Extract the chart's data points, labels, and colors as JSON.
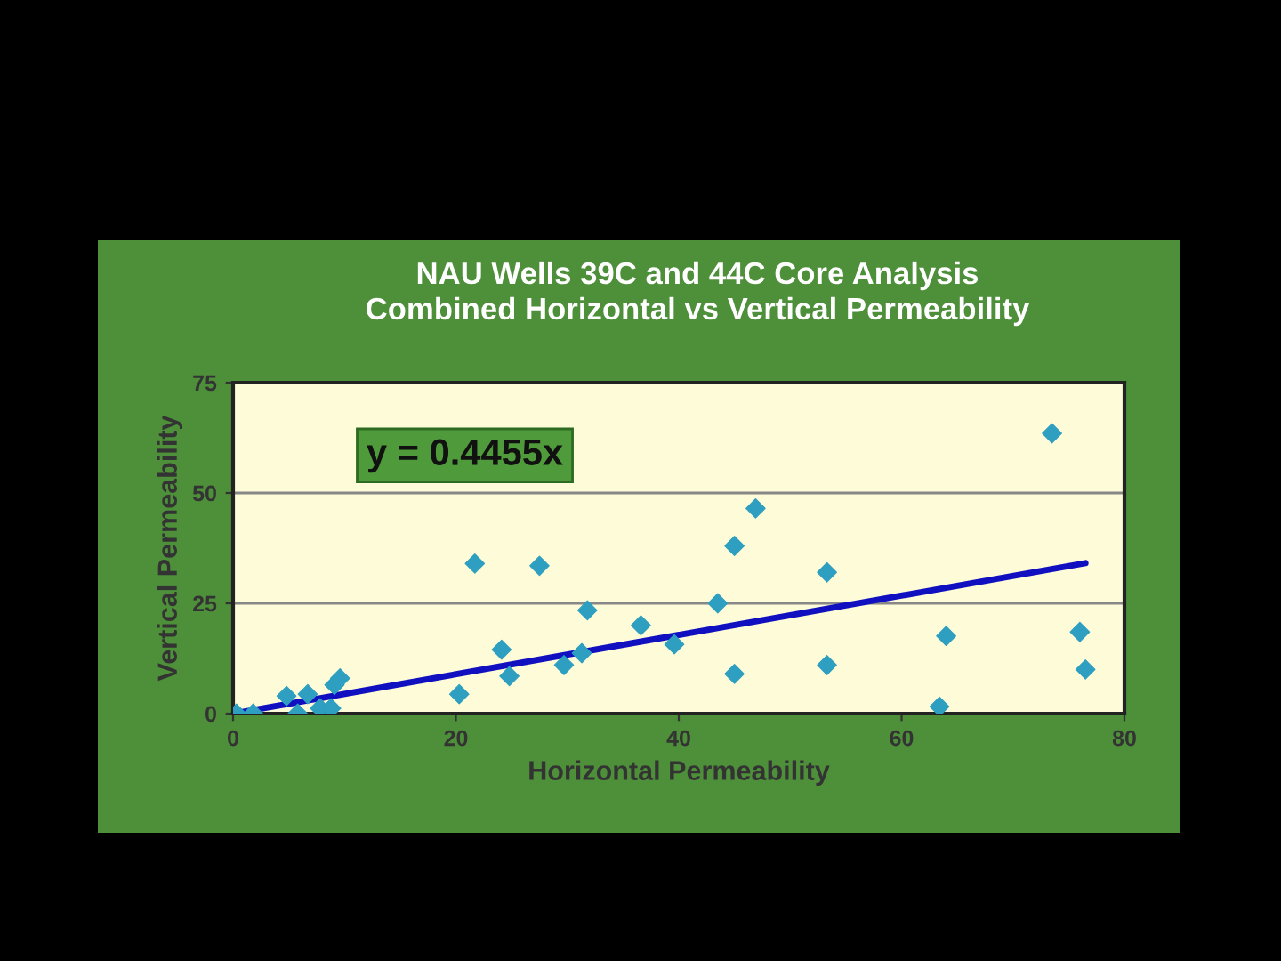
{
  "chart_data": {
    "type": "scatter",
    "title": "NAU Wells 39C and 44C Core Analysis\nCombined Horizontal vs Vertical Permeability",
    "xlabel": "Horizontal Permeability",
    "ylabel": "Vertical Permeability",
    "xlim": [
      0,
      80
    ],
    "xticks": [
      0,
      20,
      40,
      60,
      80
    ],
    "ylim": [
      0,
      75
    ],
    "yticks": [
      0,
      25,
      50,
      75
    ],
    "grid": "y",
    "marker": "diamond",
    "legend": false,
    "annotations": [
      "y = 0.4455x"
    ],
    "series": [
      {
        "color": "#2e9fc0",
        "x": [
          0.3,
          1.8,
          4.8,
          5.8,
          6.7,
          7.8,
          8.8,
          9.1,
          9.6,
          20.3,
          21.7,
          24.1,
          24.8,
          27.5,
          29.7,
          31.3,
          31.8,
          36.6,
          39.6,
          43.5,
          45,
          45,
          46.9,
          53.3,
          53.3,
          63.4,
          64,
          73.5,
          76,
          76.5
        ],
        "values": [
          0,
          0,
          4,
          0,
          4.4,
          1.2,
          1.2,
          6.5,
          8,
          4.4,
          34,
          14.5,
          8.5,
          33.5,
          11,
          13.7,
          23.4,
          20,
          15.7,
          25,
          38,
          9,
          46.5,
          32,
          11,
          1.6,
          17.6,
          63.5,
          18.5,
          10
        ]
      },
      {
        "type": "line",
        "color": "#1010c0",
        "marker": "none",
        "x": [
          0,
          76.5
        ],
        "values": [
          0,
          34.1
        ]
      }
    ]
  }
}
